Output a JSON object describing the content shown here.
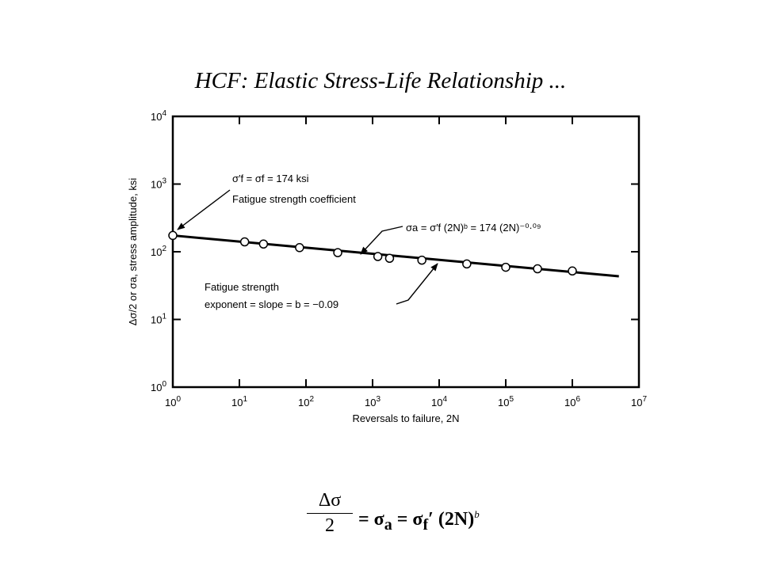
{
  "slide_title": "HCF: Elastic Stress-Life Relationship ...",
  "chart_data": {
    "type": "scatter",
    "x_scale": "log",
    "y_scale": "log",
    "xlim": [
      1,
      10000000
    ],
    "ylim": [
      1,
      10000
    ],
    "xlabel": "Reversals to failure, 2N",
    "ylabel": "Δσ/2 or σa, stress amplitude, ksi",
    "x_ticks": [
      {
        "base": "10",
        "exp": "0"
      },
      {
        "base": "10",
        "exp": "1"
      },
      {
        "base": "10",
        "exp": "2"
      },
      {
        "base": "10",
        "exp": "3"
      },
      {
        "base": "10",
        "exp": "4"
      },
      {
        "base": "10",
        "exp": "5"
      },
      {
        "base": "10",
        "exp": "6"
      },
      {
        "base": "10",
        "exp": "7"
      }
    ],
    "y_ticks": [
      {
        "base": "10",
        "exp": "0"
      },
      {
        "base": "10",
        "exp": "1"
      },
      {
        "base": "10",
        "exp": "2"
      },
      {
        "base": "10",
        "exp": "3"
      },
      {
        "base": "10",
        "exp": "4"
      }
    ],
    "grid": false,
    "points": [
      {
        "x": 1,
        "y": 174
      },
      {
        "x": 12,
        "y": 140
      },
      {
        "x": 23,
        "y": 130
      },
      {
        "x": 80,
        "y": 115
      },
      {
        "x": 300,
        "y": 97
      },
      {
        "x": 1200,
        "y": 85
      },
      {
        "x": 1800,
        "y": 80
      },
      {
        "x": 5500,
        "y": 75
      },
      {
        "x": 26000,
        "y": 66
      },
      {
        "x": 100000,
        "y": 59
      },
      {
        "x": 300000,
        "y": 56
      },
      {
        "x": 1000000,
        "y": 52
      }
    ],
    "fit_line": {
      "a": 174,
      "b": -0.09,
      "x_range": [
        1,
        5000000
      ]
    },
    "annotations": {
      "coef_eq": "σ′f = σf = 174 ksi",
      "coef_label": "Fatigue strength coefficient",
      "basquin_eq": "σa = σ′f (2N)ᵇ = 174 (2N)⁻⁰·⁰⁹",
      "exp_line1": "Fatigue strength",
      "exp_line2": "exponent = slope = b = −0.09"
    }
  },
  "formula": {
    "numerator": "Δσ",
    "denominator": "2",
    "rhs": "= σ",
    "sub_a": "a",
    "mid": " = σ",
    "sub_f": "f",
    "prime": "′",
    "tail": " (2N)",
    "exp_b": "b"
  }
}
